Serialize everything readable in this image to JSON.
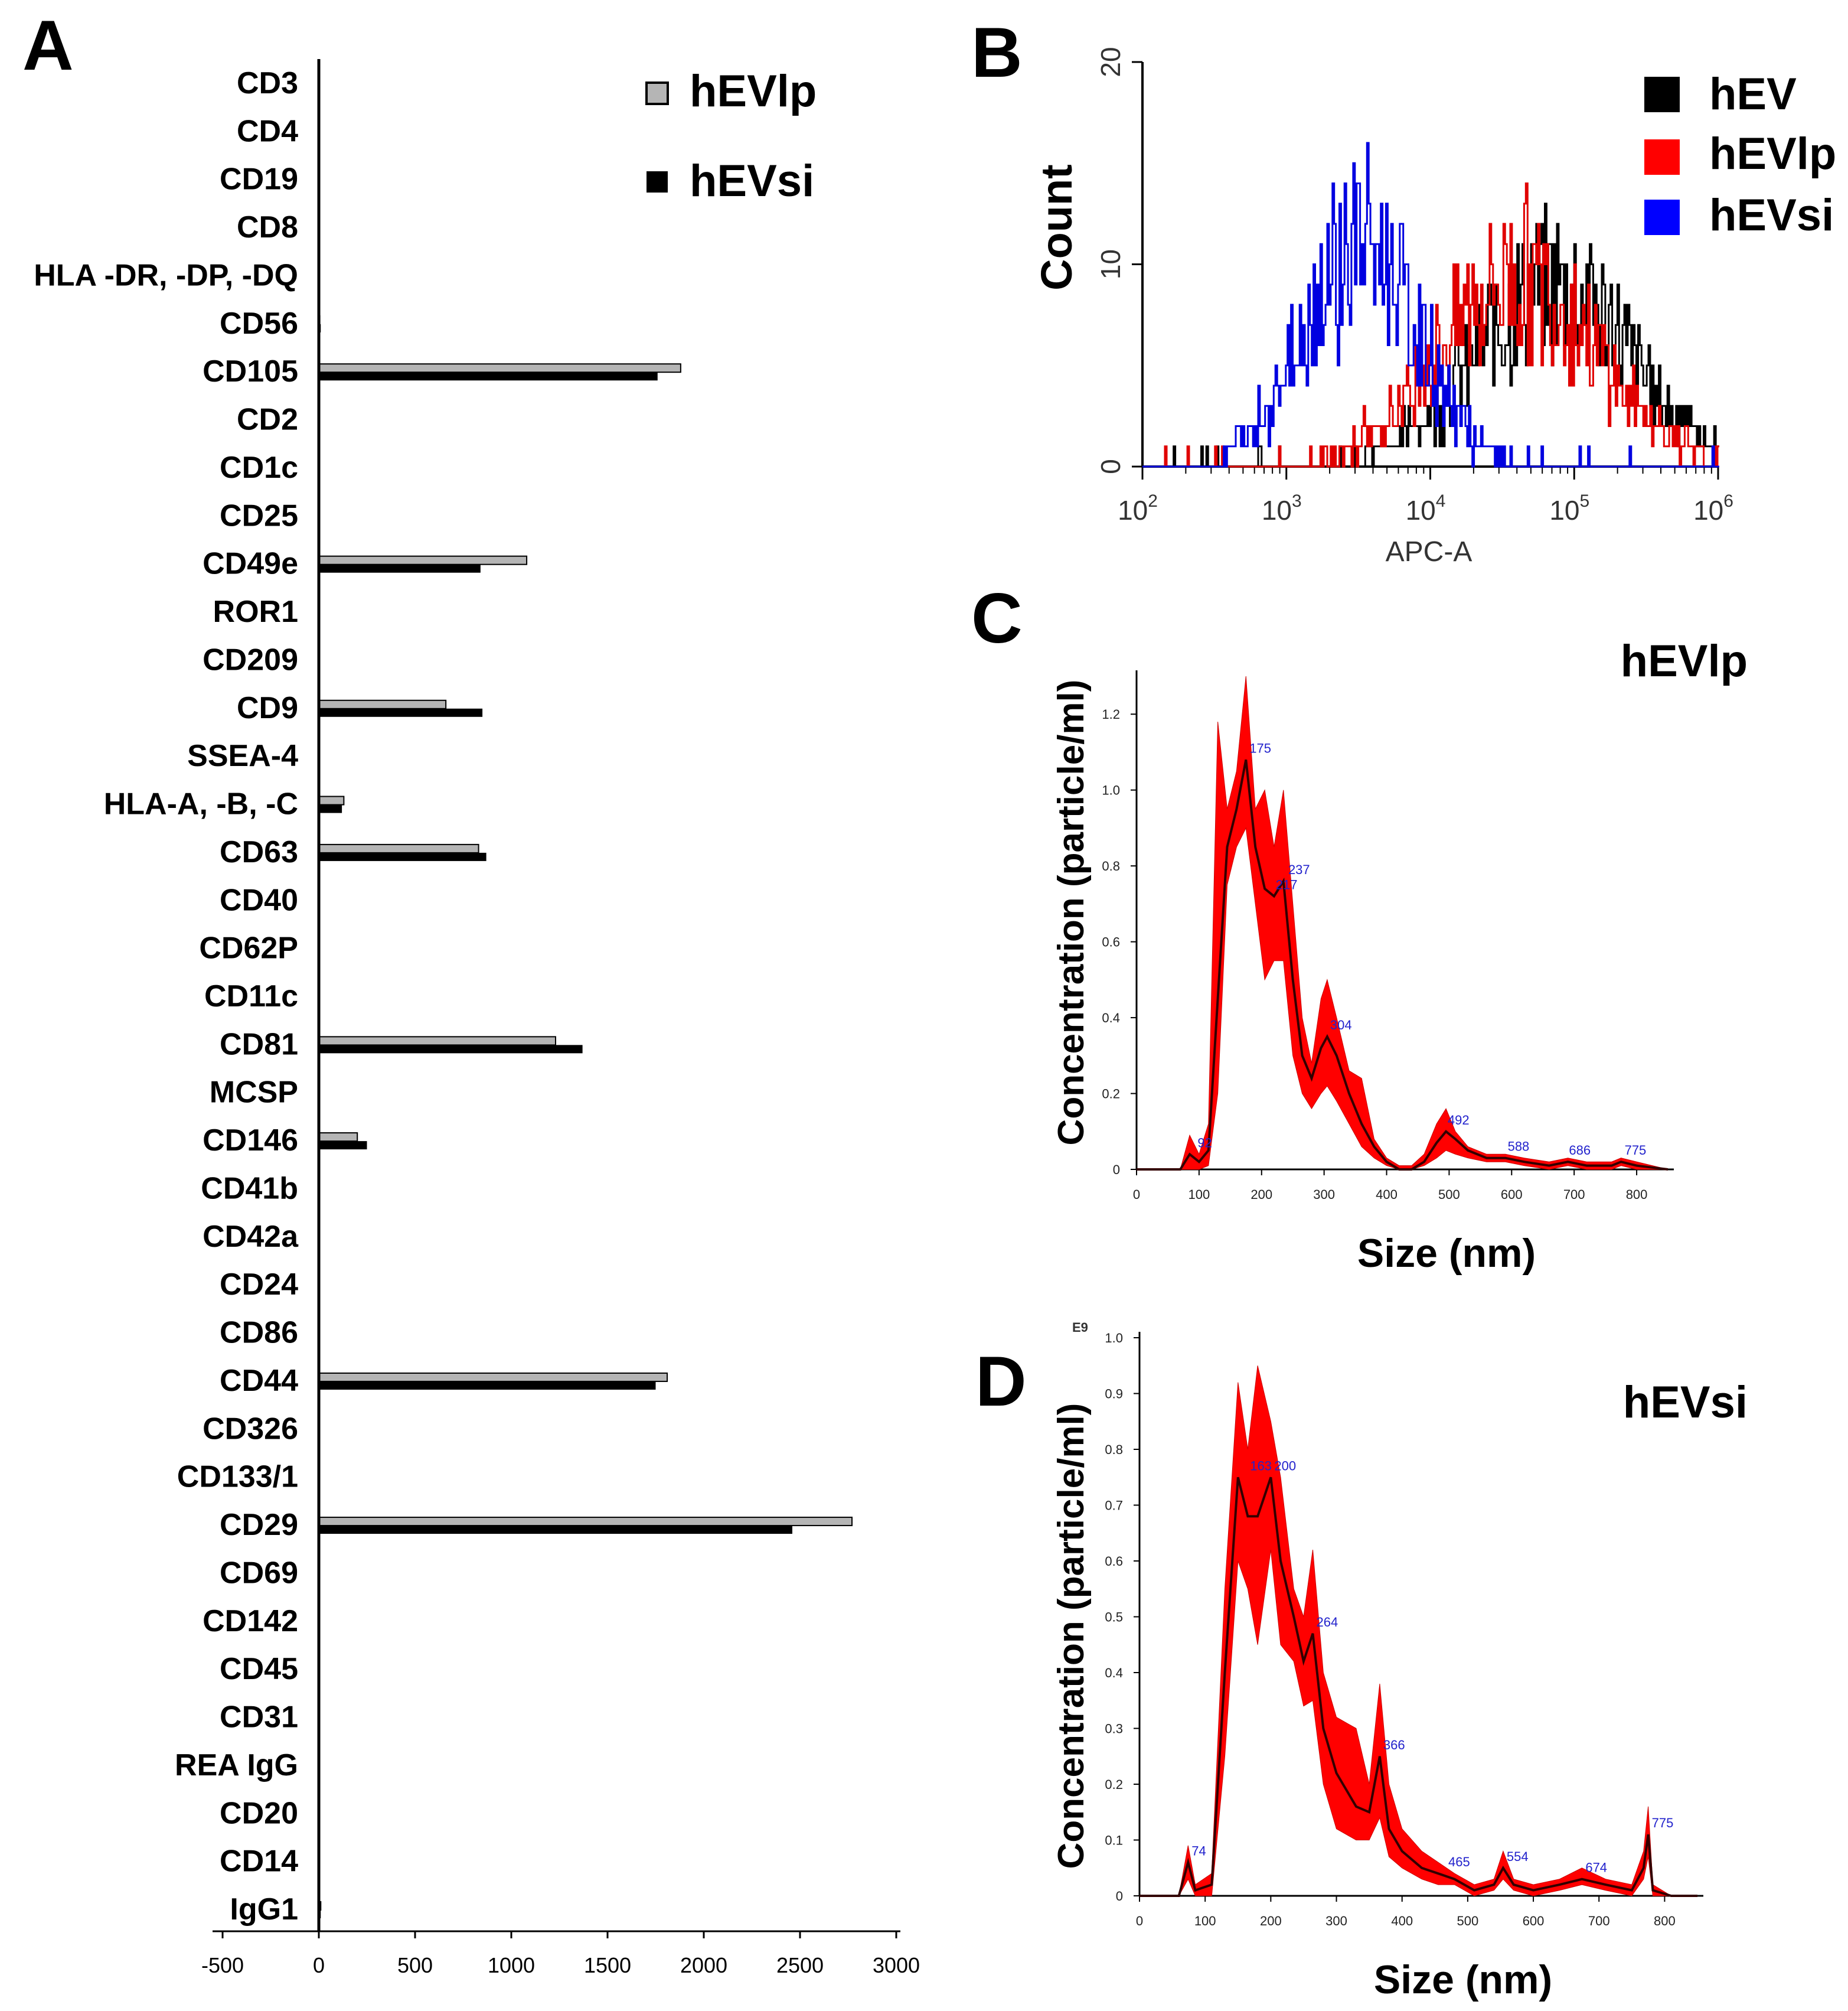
{
  "panels": {
    "A": "A",
    "B": "B",
    "C": "C",
    "D": "D"
  },
  "colors": {
    "hevlp_bar": "#b5b5b5",
    "hevsi_bar": "#000000",
    "hev_line": "#000000",
    "hevlp_line": "#e00000",
    "hevsi_line": "#0000e0",
    "nta_fill": "#ff0000",
    "peak_label": "#2222cc"
  },
  "chart_data": [
    {
      "id": "A",
      "type": "bar",
      "orientation": "horizontal",
      "categories": [
        "CD3",
        "CD4",
        "CD19",
        "CD8",
        "HLA -DR, -DP, -DQ",
        "CD56",
        "CD105",
        "CD2",
        "CD1c",
        "CD25",
        "CD49e",
        "ROR1",
        "CD209",
        "CD9",
        "SSEA-4",
        "HLA-A, -B, -C",
        "CD63",
        "CD40",
        "CD62P",
        "CD11c",
        "CD81",
        "MCSP",
        "CD146",
        "CD41b",
        "CD42a",
        "CD24",
        "CD86",
        "CD44",
        "CD326",
        "CD133/1",
        "CD29",
        "CD69",
        "CD142",
        "CD45",
        "CD31",
        "REA IgG",
        "CD20",
        "CD14",
        "IgG1"
      ],
      "series": [
        {
          "name": "hEVlp",
          "values": [
            0,
            0,
            0,
            0,
            0,
            5,
            1880,
            0,
            0,
            0,
            1080,
            0,
            0,
            660,
            0,
            130,
            830,
            0,
            0,
            0,
            1230,
            0,
            200,
            0,
            0,
            0,
            0,
            1810,
            0,
            0,
            2770,
            0,
            0,
            0,
            0,
            0,
            0,
            0,
            10
          ]
        },
        {
          "name": "hEVsi",
          "values": [
            0,
            0,
            0,
            0,
            0,
            10,
            1760,
            0,
            0,
            0,
            840,
            0,
            0,
            850,
            0,
            120,
            870,
            0,
            0,
            0,
            1370,
            0,
            250,
            0,
            0,
            0,
            0,
            1750,
            0,
            0,
            2460,
            0,
            0,
            0,
            0,
            0,
            0,
            0,
            10
          ]
        }
      ],
      "xticks": [
        "-500",
        "0",
        "500",
        "1000",
        "1500",
        "2000",
        "2500",
        "3000"
      ],
      "xlim": [
        -500,
        3000
      ]
    },
    {
      "id": "B",
      "type": "line",
      "scale": "log-x histogram",
      "xlabel": "APC-A",
      "ylabel": "Count",
      "xticks": [
        "10^2",
        "10^3",
        "10^4",
        "10^5",
        "10^6"
      ],
      "yticks": [
        "0",
        "10",
        "20"
      ],
      "xlim_log10": [
        2,
        6
      ],
      "ylim": [
        0,
        20
      ],
      "series": [
        {
          "name": "hEV",
          "peak_log10": 4.85,
          "width": 0.55,
          "peak_count": 9
        },
        {
          "name": "hEVlp",
          "peak_log10": 4.6,
          "width": 0.55,
          "peak_count": 9.5
        },
        {
          "name": "hEVsi",
          "peak_log10": 3.5,
          "width": 0.4,
          "peak_count": 11
        }
      ]
    },
    {
      "id": "C",
      "type": "area",
      "title": "hEVlp",
      "xlabel": "Size (nm)",
      "ylabel": "Concentration (particle/ml)",
      "xticks": [
        "0",
        "100",
        "200",
        "300",
        "400",
        "500",
        "600",
        "700",
        "800"
      ],
      "yticks": [
        "0",
        "0.2",
        "0.4",
        "0.6",
        "0.8",
        "1.0",
        "1.2"
      ],
      "xlim": [
        0,
        850
      ],
      "ylim": [
        0,
        1.3
      ],
      "mean": [
        [
          0,
          0
        ],
        [
          70,
          0
        ],
        [
          85,
          0.04
        ],
        [
          100,
          0.02
        ],
        [
          115,
          0.05
        ],
        [
          130,
          0.45
        ],
        [
          145,
          0.85
        ],
        [
          160,
          0.95
        ],
        [
          175,
          1.08
        ],
        [
          190,
          0.85
        ],
        [
          205,
          0.74
        ],
        [
          220,
          0.72
        ],
        [
          235,
          0.76
        ],
        [
          250,
          0.5
        ],
        [
          265,
          0.3
        ],
        [
          280,
          0.24
        ],
        [
          295,
          0.32
        ],
        [
          305,
          0.35
        ],
        [
          320,
          0.3
        ],
        [
          340,
          0.2
        ],
        [
          360,
          0.12
        ],
        [
          380,
          0.06
        ],
        [
          400,
          0.02
        ],
        [
          420,
          0.0
        ],
        [
          440,
          0.0
        ],
        [
          460,
          0.02
        ],
        [
          480,
          0.07
        ],
        [
          495,
          0.1
        ],
        [
          510,
          0.08
        ],
        [
          530,
          0.05
        ],
        [
          560,
          0.03
        ],
        [
          590,
          0.03
        ],
        [
          620,
          0.02
        ],
        [
          660,
          0.01
        ],
        [
          690,
          0.02
        ],
        [
          720,
          0.01
        ],
        [
          760,
          0.01
        ],
        [
          775,
          0.02
        ],
        [
          800,
          0.01
        ],
        [
          850,
          0
        ]
      ],
      "upper": [
        [
          0,
          0
        ],
        [
          70,
          0
        ],
        [
          85,
          0.09
        ],
        [
          100,
          0.04
        ],
        [
          115,
          0.12
        ],
        [
          130,
          1.18
        ],
        [
          145,
          0.95
        ],
        [
          160,
          1.05
        ],
        [
          175,
          1.3
        ],
        [
          190,
          0.95
        ],
        [
          205,
          1.0
        ],
        [
          220,
          0.85
        ],
        [
          235,
          1.0
        ],
        [
          250,
          0.7
        ],
        [
          265,
          0.4
        ],
        [
          280,
          0.28
        ],
        [
          295,
          0.45
        ],
        [
          305,
          0.5
        ],
        [
          320,
          0.4
        ],
        [
          340,
          0.26
        ],
        [
          360,
          0.24
        ],
        [
          380,
          0.08
        ],
        [
          400,
          0.03
        ],
        [
          420,
          0.01
        ],
        [
          440,
          0.01
        ],
        [
          460,
          0.04
        ],
        [
          480,
          0.12
        ],
        [
          495,
          0.16
        ],
        [
          510,
          0.1
        ],
        [
          530,
          0.06
        ],
        [
          560,
          0.04
        ],
        [
          590,
          0.04
        ],
        [
          620,
          0.03
        ],
        [
          660,
          0.02
        ],
        [
          690,
          0.03
        ],
        [
          720,
          0.02
        ],
        [
          760,
          0.02
        ],
        [
          775,
          0.03
        ],
        [
          800,
          0.02
        ],
        [
          850,
          0
        ]
      ],
      "lower": [
        [
          0,
          0
        ],
        [
          70,
          0
        ],
        [
          85,
          0.0
        ],
        [
          100,
          0.0
        ],
        [
          115,
          0.01
        ],
        [
          130,
          0.2
        ],
        [
          145,
          0.75
        ],
        [
          160,
          0.85
        ],
        [
          175,
          0.9
        ],
        [
          190,
          0.7
        ],
        [
          205,
          0.5
        ],
        [
          220,
          0.55
        ],
        [
          235,
          0.55
        ],
        [
          250,
          0.3
        ],
        [
          265,
          0.2
        ],
        [
          280,
          0.16
        ],
        [
          295,
          0.2
        ],
        [
          305,
          0.22
        ],
        [
          320,
          0.18
        ],
        [
          340,
          0.12
        ],
        [
          360,
          0.06
        ],
        [
          380,
          0.03
        ],
        [
          400,
          0.01
        ],
        [
          420,
          0.0
        ],
        [
          440,
          0.0
        ],
        [
          460,
          0.01
        ],
        [
          480,
          0.03
        ],
        [
          495,
          0.05
        ],
        [
          510,
          0.04
        ],
        [
          530,
          0.03
        ],
        [
          560,
          0.02
        ],
        [
          590,
          0.02
        ],
        [
          620,
          0.01
        ],
        [
          660,
          0.0
        ],
        [
          690,
          0.01
        ],
        [
          720,
          0.0
        ],
        [
          760,
          0.0
        ],
        [
          775,
          0.01
        ],
        [
          800,
          0.0
        ],
        [
          850,
          0
        ]
      ],
      "annotations": [
        {
          "x": 92,
          "y": 0.04,
          "label": "92"
        },
        {
          "x": 175,
          "y": 1.08,
          "label": "175"
        },
        {
          "x": 217,
          "y": 0.72,
          "label": "217"
        },
        {
          "x": 237,
          "y": 0.76,
          "label": "237"
        },
        {
          "x": 304,
          "y": 0.35,
          "label": "304"
        },
        {
          "x": 492,
          "y": 0.1,
          "label": "492"
        },
        {
          "x": 588,
          "y": 0.03,
          "label": "588"
        },
        {
          "x": 686,
          "y": 0.02,
          "label": "686"
        },
        {
          "x": 775,
          "y": 0.02,
          "label": "775"
        }
      ]
    },
    {
      "id": "D",
      "type": "area",
      "title": "hEVsi",
      "xlabel": "Size (nm)",
      "ylabel": "Concentration (particle/ml)",
      "yunit": "E9",
      "xticks": [
        "0",
        "100",
        "200",
        "300",
        "400",
        "500",
        "600",
        "700",
        "800"
      ],
      "yticks": [
        "0",
        "0.1",
        "0.2",
        "0.3",
        "0.4",
        "0.5",
        "0.6",
        "0.7",
        "0.8",
        "0.9",
        "1.0"
      ],
      "xlim": [
        0,
        850
      ],
      "ylim": [
        0,
        1.0
      ],
      "mean": [
        [
          0,
          0
        ],
        [
          60,
          0
        ],
        [
          74,
          0.06
        ],
        [
          85,
          0.01
        ],
        [
          110,
          0.02
        ],
        [
          130,
          0.4
        ],
        [
          150,
          0.75
        ],
        [
          165,
          0.68
        ],
        [
          180,
          0.68
        ],
        [
          200,
          0.75
        ],
        [
          215,
          0.6
        ],
        [
          235,
          0.5
        ],
        [
          250,
          0.42
        ],
        [
          264,
          0.47
        ],
        [
          280,
          0.3
        ],
        [
          300,
          0.22
        ],
        [
          330,
          0.16
        ],
        [
          350,
          0.15
        ],
        [
          366,
          0.25
        ],
        [
          380,
          0.12
        ],
        [
          400,
          0.08
        ],
        [
          430,
          0.05
        ],
        [
          455,
          0.04
        ],
        [
          480,
          0.03
        ],
        [
          510,
          0.01
        ],
        [
          540,
          0.02
        ],
        [
          554,
          0.05
        ],
        [
          570,
          0.02
        ],
        [
          600,
          0.01
        ],
        [
          640,
          0.02
        ],
        [
          674,
          0.03
        ],
        [
          710,
          0.02
        ],
        [
          750,
          0.01
        ],
        [
          768,
          0.05
        ],
        [
          775,
          0.11
        ],
        [
          782,
          0.01
        ],
        [
          810,
          0.0
        ],
        [
          850,
          0
        ]
      ],
      "upper": [
        [
          0,
          0
        ],
        [
          60,
          0
        ],
        [
          74,
          0.09
        ],
        [
          85,
          0.02
        ],
        [
          110,
          0.04
        ],
        [
          130,
          0.55
        ],
        [
          150,
          0.92
        ],
        [
          165,
          0.8
        ],
        [
          180,
          0.95
        ],
        [
          200,
          0.85
        ],
        [
          215,
          0.75
        ],
        [
          235,
          0.55
        ],
        [
          250,
          0.5
        ],
        [
          264,
          0.62
        ],
        [
          280,
          0.4
        ],
        [
          300,
          0.32
        ],
        [
          330,
          0.3
        ],
        [
          350,
          0.2
        ],
        [
          366,
          0.38
        ],
        [
          380,
          0.2
        ],
        [
          400,
          0.12
        ],
        [
          430,
          0.08
        ],
        [
          455,
          0.06
        ],
        [
          480,
          0.04
        ],
        [
          510,
          0.02
        ],
        [
          540,
          0.03
        ],
        [
          554,
          0.08
        ],
        [
          570,
          0.03
        ],
        [
          600,
          0.02
        ],
        [
          640,
          0.03
        ],
        [
          674,
          0.05
        ],
        [
          710,
          0.03
        ],
        [
          750,
          0.02
        ],
        [
          768,
          0.08
        ],
        [
          775,
          0.16
        ],
        [
          782,
          0.02
        ],
        [
          810,
          0.0
        ],
        [
          850,
          0
        ]
      ],
      "lower": [
        [
          0,
          0
        ],
        [
          60,
          0
        ],
        [
          74,
          0.03
        ],
        [
          85,
          0.0
        ],
        [
          110,
          0.0
        ],
        [
          130,
          0.25
        ],
        [
          150,
          0.6
        ],
        [
          165,
          0.55
        ],
        [
          180,
          0.45
        ],
        [
          200,
          0.62
        ],
        [
          215,
          0.45
        ],
        [
          235,
          0.42
        ],
        [
          250,
          0.34
        ],
        [
          264,
          0.35
        ],
        [
          280,
          0.2
        ],
        [
          300,
          0.12
        ],
        [
          330,
          0.1
        ],
        [
          350,
          0.1
        ],
        [
          366,
          0.14
        ],
        [
          380,
          0.07
        ],
        [
          400,
          0.05
        ],
        [
          430,
          0.03
        ],
        [
          455,
          0.02
        ],
        [
          480,
          0.02
        ],
        [
          510,
          0.0
        ],
        [
          540,
          0.01
        ],
        [
          554,
          0.03
        ],
        [
          570,
          0.01
        ],
        [
          600,
          0.0
        ],
        [
          640,
          0.01
        ],
        [
          674,
          0.02
        ],
        [
          710,
          0.01
        ],
        [
          750,
          0.0
        ],
        [
          768,
          0.03
        ],
        [
          775,
          0.07
        ],
        [
          782,
          0.0
        ],
        [
          810,
          0.0
        ],
        [
          850,
          0
        ]
      ],
      "annotations": [
        {
          "x": 74,
          "y": 0.06,
          "label": "74"
        },
        {
          "x": 163,
          "y": 0.75,
          "label": "163"
        },
        {
          "x": 200,
          "y": 0.75,
          "label": "200"
        },
        {
          "x": 264,
          "y": 0.47,
          "label": "264"
        },
        {
          "x": 366,
          "y": 0.25,
          "label": "366"
        },
        {
          "x": 465,
          "y": 0.04,
          "label": "465"
        },
        {
          "x": 554,
          "y": 0.05,
          "label": "554"
        },
        {
          "x": 674,
          "y": 0.03,
          "label": "674"
        },
        {
          "x": 775,
          "y": 0.11,
          "label": "775"
        }
      ]
    }
  ]
}
